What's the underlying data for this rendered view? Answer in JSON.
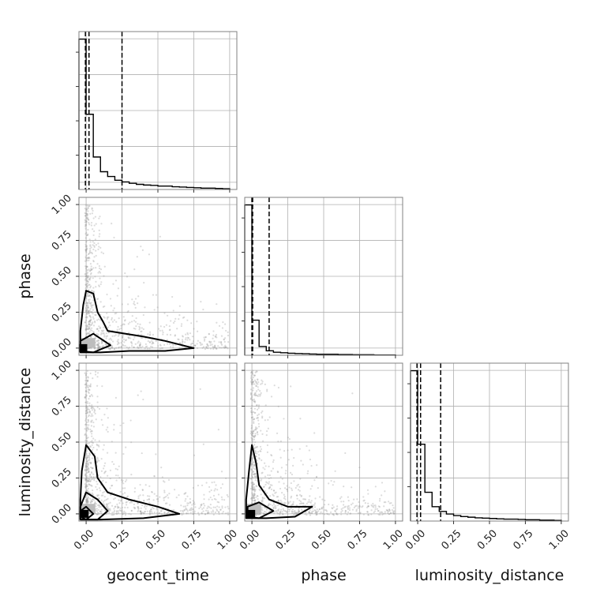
{
  "chart_data": {
    "type": "corner",
    "parameters": [
      "geocent_time",
      "phase",
      "luminosity_distance"
    ],
    "tick_values": [
      0.0,
      0.25,
      0.5,
      0.75,
      1.0
    ],
    "tick_labels": [
      "0.00",
      "0.25",
      "0.50",
      "0.75",
      "1.00"
    ],
    "xlim": [
      -0.05,
      1.05
    ],
    "ylim": [
      -0.05,
      1.05
    ],
    "grid": true,
    "colors": {
      "line": "#000000",
      "scatter": "#9a9a9a",
      "grid": "#b0b0b0",
      "frame": "#808080"
    },
    "histograms": [
      {
        "parameter": "geocent_time",
        "bin_edges": [
          -0.05,
          0.0,
          0.05,
          0.1,
          0.15,
          0.2,
          0.25,
          0.3,
          0.35,
          0.4,
          0.45,
          0.5,
          0.55,
          0.6,
          0.65,
          0.7,
          0.75,
          0.8,
          0.85,
          0.9,
          0.95,
          1.0
        ],
        "counts": [
          4.4,
          2.2,
          0.95,
          0.52,
          0.38,
          0.27,
          0.22,
          0.18,
          0.15,
          0.13,
          0.12,
          0.1,
          0.1,
          0.08,
          0.07,
          0.06,
          0.05,
          0.04,
          0.04,
          0.03,
          0.02
        ],
        "quantiles": [
          -0.005,
          0.02,
          0.25
        ]
      },
      {
        "parameter": "phase",
        "bin_edges": [
          -0.05,
          0.0,
          0.05,
          0.1,
          0.15,
          0.2,
          0.25,
          0.3,
          0.35,
          0.4,
          0.45,
          0.5,
          0.55,
          0.6,
          0.65,
          0.7,
          0.75,
          0.8,
          0.85,
          0.9,
          0.95,
          1.0
        ],
        "counts": [
          6.0,
          1.4,
          0.35,
          0.18,
          0.12,
          0.1,
          0.08,
          0.07,
          0.06,
          0.05,
          0.04,
          0.04,
          0.04,
          0.03,
          0.03,
          0.02,
          0.02,
          0.02,
          0.01,
          0.01,
          0.01
        ],
        "quantiles": [
          0.0,
          0.005,
          0.12
        ]
      },
      {
        "parameter": "luminosity_distance",
        "bin_edges": [
          -0.05,
          0.0,
          0.05,
          0.1,
          0.15,
          0.2,
          0.25,
          0.3,
          0.35,
          0.4,
          0.45,
          0.5,
          0.55,
          0.6,
          0.65,
          0.7,
          0.75,
          0.8,
          0.85,
          0.9,
          0.95,
          1.0
        ],
        "counts": [
          4.7,
          2.4,
          0.9,
          0.45,
          0.3,
          0.22,
          0.17,
          0.14,
          0.12,
          0.1,
          0.09,
          0.08,
          0.07,
          0.06,
          0.06,
          0.05,
          0.04,
          0.04,
          0.03,
          0.03,
          0.02
        ],
        "quantiles": [
          -0.005,
          0.02,
          0.16
        ]
      }
    ],
    "contours_2d": [
      {
        "x": "geocent_time",
        "y": "phase",
        "levels": [
          [
            [
              -0.04,
              0.05
            ],
            [
              0.05,
              0.1
            ],
            [
              0.17,
              0.02
            ],
            [
              0.05,
              -0.03
            ],
            [
              -0.04,
              -0.02
            ]
          ],
          [
            [
              -0.04,
              0.12
            ],
            [
              -0.02,
              0.3
            ],
            [
              0.0,
              0.4
            ],
            [
              0.05,
              0.38
            ],
            [
              0.08,
              0.25
            ],
            [
              0.12,
              0.18
            ],
            [
              0.15,
              0.12
            ],
            [
              0.4,
              0.08
            ],
            [
              0.55,
              0.05
            ],
            [
              0.75,
              0.0
            ],
            [
              0.55,
              -0.02
            ],
            [
              0.3,
              -0.02
            ],
            [
              0.1,
              -0.03
            ],
            [
              -0.04,
              -0.03
            ]
          ]
        ],
        "peak": [
          -0.02,
          0.0
        ]
      },
      {
        "x": "geocent_time",
        "y": "luminosity_distance",
        "levels": [
          [
            [
              -0.04,
              0.02
            ],
            [
              0.0,
              0.05
            ],
            [
              0.05,
              0.0
            ],
            [
              0.0,
              -0.04
            ],
            [
              -0.04,
              -0.02
            ]
          ],
          [
            [
              -0.04,
              0.05
            ],
            [
              0.0,
              0.15
            ],
            [
              0.08,
              0.1
            ],
            [
              0.15,
              0.02
            ],
            [
              0.08,
              -0.04
            ],
            [
              -0.04,
              -0.04
            ]
          ],
          [
            [
              -0.04,
              0.1
            ],
            [
              -0.03,
              0.3
            ],
            [
              0.0,
              0.48
            ],
            [
              0.06,
              0.4
            ],
            [
              0.08,
              0.25
            ],
            [
              0.15,
              0.15
            ],
            [
              0.3,
              0.1
            ],
            [
              0.5,
              0.05
            ],
            [
              0.65,
              0.0
            ],
            [
              0.4,
              -0.03
            ],
            [
              0.1,
              -0.04
            ],
            [
              -0.04,
              -0.04
            ]
          ]
        ],
        "peak": [
          -0.01,
          0.0
        ]
      },
      {
        "x": "phase",
        "y": "luminosity_distance",
        "levels": [
          [
            [
              -0.03,
              0.05
            ],
            [
              0.05,
              0.08
            ],
            [
              0.15,
              0.02
            ],
            [
              0.05,
              -0.03
            ],
            [
              -0.03,
              -0.02
            ]
          ],
          [
            [
              -0.04,
              0.1
            ],
            [
              -0.02,
              0.3
            ],
            [
              0.0,
              0.48
            ],
            [
              0.03,
              0.35
            ],
            [
              0.05,
              0.2
            ],
            [
              0.12,
              0.1
            ],
            [
              0.25,
              0.05
            ],
            [
              0.42,
              0.05
            ],
            [
              0.3,
              -0.02
            ],
            [
              0.1,
              -0.03
            ],
            [
              -0.04,
              -0.03
            ]
          ]
        ],
        "peak": [
          -0.005,
          0.0
        ]
      }
    ]
  }
}
